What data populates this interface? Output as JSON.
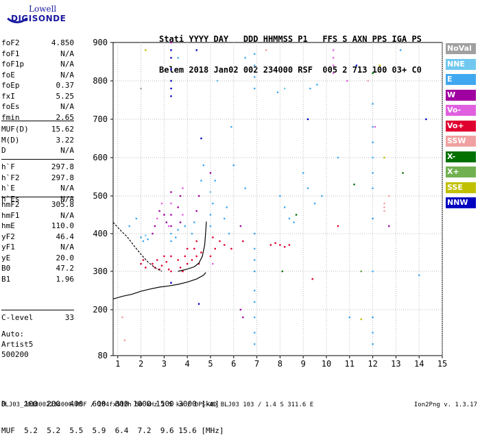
{
  "logo": {
    "line1": "Lowell",
    "line2": "DIGISONDE"
  },
  "header": {
    "line1": "Stati YYYY DAY   DDD HHMMSS P1   FFS S AXN PPS IGA PS",
    "line2": "Belem 2018 Jan02 002 234000 RSF  005 2 713 100 03+ C0"
  },
  "params_a": [
    {
      "k": "foF2",
      "v": "4.850"
    },
    {
      "k": "foF1",
      "v": "N/A"
    },
    {
      "k": "foF1p",
      "v": "N/A"
    },
    {
      "k": "foE",
      "v": "N/A"
    },
    {
      "k": "foEp",
      "v": "0.37"
    },
    {
      "k": "fxI",
      "v": "5.25"
    },
    {
      "k": "foEs",
      "v": "N/A"
    },
    {
      "k": "fmin",
      "v": "2.65"
    }
  ],
  "params_b": [
    {
      "k": "MUF(D)",
      "v": "15.62"
    },
    {
      "k": "M(D)",
      "v": "3.22"
    },
    {
      "k": "D",
      "v": "N/A"
    }
  ],
  "params_c": [
    {
      "k": "h`F",
      "v": "297.8"
    },
    {
      "k": "h`F2",
      "v": "297.8"
    },
    {
      "k": "h`E",
      "v": "N/A"
    },
    {
      "k": "h`Es",
      "v": "N/A"
    }
  ],
  "params_d": [
    {
      "k": "hmF2",
      "v": "305.8"
    },
    {
      "k": "hmF1",
      "v": "N/A"
    },
    {
      "k": "hmE",
      "v": "110.0"
    },
    {
      "k": "yF2",
      "v": "46.4"
    },
    {
      "k": "yF1",
      "v": "N/A"
    },
    {
      "k": "yE",
      "v": "20.0"
    },
    {
      "k": "B0",
      "v": "47.2"
    },
    {
      "k": "B1",
      "v": "1.96"
    }
  ],
  "params_e": [
    {
      "k": "C-level",
      "v": "33"
    }
  ],
  "autoscaling": {
    "line1": "Auto:",
    "line2": "Artist5",
    "line3": "500200"
  },
  "legend": [
    {
      "label": "NoVal",
      "color": "#a0a0a0"
    },
    {
      "label": "NNE",
      "color": "#70c8f0"
    },
    {
      "label": "E",
      "color": "#40a8f0"
    },
    {
      "label": "W",
      "color": "#a000a0"
    },
    {
      "label": "Vo-",
      "color": "#e060e0"
    },
    {
      "label": "Vo+",
      "color": "#e00030"
    },
    {
      "label": "SSW",
      "color": "#f0a0a0"
    },
    {
      "label": "X-",
      "color": "#007000"
    },
    {
      "label": "X+",
      "color": "#70b050"
    },
    {
      "label": "SSE",
      "color": "#c0c000"
    },
    {
      "label": "NNW",
      "color": "#0000c0"
    }
  ],
  "muf_table": {
    "line1": "D    100  200  400  600  800 1000 1500 3000 [km]",
    "line2": "MUF  5.2  5.2  5.5  5.9  6.4  7.2  9.6 15.6 [MHz]"
  },
  "footer": {
    "left": "BLJ03_2018002234000.RSF / 284fx512h 50 kHz 2.5 km / DPS-4D BLJ03 103 / 1.4 S 311.6 E",
    "right": "Ion2Png v. 1.3.17"
  },
  "chart_data": {
    "type": "scatter",
    "xlim": [
      0.8,
      15
    ],
    "ylim": [
      80,
      900
    ],
    "x_ticks": [
      1,
      2,
      3,
      4,
      5,
      6,
      7,
      8,
      9,
      10,
      11,
      12,
      13,
      14,
      15
    ],
    "y_ticks": [
      80,
      200,
      300,
      400,
      500,
      600,
      700,
      800,
      900
    ],
    "y_scale": "nonlinear",
    "grid": "dotted",
    "lines": [
      {
        "name": "profile",
        "color": "#000000",
        "dash": false,
        "points": [
          [
            0.8,
            228
          ],
          [
            1.2,
            235
          ],
          [
            1.6,
            240
          ],
          [
            2.0,
            248
          ],
          [
            2.4,
            254
          ],
          [
            2.8,
            259
          ],
          [
            3.2,
            262
          ],
          [
            3.6,
            266
          ],
          [
            4.0,
            272
          ],
          [
            4.4,
            280
          ],
          [
            4.7,
            290
          ],
          [
            4.8,
            297
          ]
        ]
      },
      {
        "name": "trace",
        "color": "#000000",
        "dash": false,
        "points": [
          [
            3.6,
            300
          ],
          [
            4.0,
            306
          ],
          [
            4.3,
            312
          ],
          [
            4.5,
            322
          ],
          [
            4.65,
            340
          ],
          [
            4.75,
            370
          ],
          [
            4.8,
            410
          ],
          [
            4.82,
            432
          ]
        ]
      },
      {
        "name": "extrapolation",
        "color": "#000000",
        "dash": true,
        "points": [
          [
            0.8,
            430
          ],
          [
            1.1,
            410
          ],
          [
            1.4,
            392
          ],
          [
            1.7,
            368
          ],
          [
            2.0,
            345
          ],
          [
            2.3,
            325
          ],
          [
            2.6,
            310
          ],
          [
            2.9,
            300
          ]
        ]
      }
    ],
    "points": [
      {
        "x": 2.0,
        "y": 390,
        "c": "#40a8f0"
      },
      {
        "x": 2.1,
        "y": 380,
        "c": "#40a8f0"
      },
      {
        "x": 2.2,
        "y": 395,
        "c": "#70c8f0"
      },
      {
        "x": 2.3,
        "y": 385,
        "c": "#40a8f0"
      },
      {
        "x": 2.5,
        "y": 400,
        "c": "#a000a0"
      },
      {
        "x": 2.6,
        "y": 420,
        "c": "#a000a0"
      },
      {
        "x": 2.7,
        "y": 440,
        "c": "#e060e0"
      },
      {
        "x": 2.8,
        "y": 460,
        "c": "#a000a0"
      },
      {
        "x": 2.9,
        "y": 480,
        "c": "#e060e0"
      },
      {
        "x": 3.0,
        "y": 450,
        "c": "#a000a0"
      },
      {
        "x": 3.1,
        "y": 430,
        "c": "#a000a0"
      },
      {
        "x": 3.2,
        "y": 420,
        "c": "#e060e0"
      },
      {
        "x": 2.5,
        "y": 320,
        "c": "#e00030"
      },
      {
        "x": 2.6,
        "y": 310,
        "c": "#e00030"
      },
      {
        "x": 2.7,
        "y": 330,
        "c": "#e00030"
      },
      {
        "x": 2.8,
        "y": 305,
        "c": "#e00030"
      },
      {
        "x": 2.9,
        "y": 315,
        "c": "#e00030"
      },
      {
        "x": 3.0,
        "y": 340,
        "c": "#e00030"
      },
      {
        "x": 3.1,
        "y": 325,
        "c": "#e00030"
      },
      {
        "x": 3.2,
        "y": 305,
        "c": "#e00030"
      },
      {
        "x": 2.1,
        "y": 330,
        "c": "#e00030"
      },
      {
        "x": 2.2,
        "y": 310,
        "c": "#e00030"
      },
      {
        "x": 2.0,
        "y": 320,
        "c": "#e00030"
      },
      {
        "x": 3.3,
        "y": 380,
        "c": "#40a8f0"
      },
      {
        "x": 3.3,
        "y": 400,
        "c": "#40a8f0"
      },
      {
        "x": 3.3,
        "y": 420,
        "c": "#a000a0"
      },
      {
        "x": 3.3,
        "y": 450,
        "c": "#a000a0"
      },
      {
        "x": 3.3,
        "y": 480,
        "c": "#e060e0"
      },
      {
        "x": 3.3,
        "y": 510,
        "c": "#a000a0"
      },
      {
        "x": 3.3,
        "y": 340,
        "c": "#e00030"
      },
      {
        "x": 3.3,
        "y": 300,
        "c": "#e00030"
      },
      {
        "x": 3.3,
        "y": 270,
        "c": "#0000c0"
      },
      {
        "x": 3.3,
        "y": 860,
        "c": "#0000c0"
      },
      {
        "x": 3.3,
        "y": 830,
        "c": "#0000c0"
      },
      {
        "x": 3.3,
        "y": 800,
        "c": "#0000c0"
      },
      {
        "x": 3.3,
        "y": 780,
        "c": "#0000c0"
      },
      {
        "x": 3.3,
        "y": 760,
        "c": "#0000c0"
      },
      {
        "x": 3.3,
        "y": 880,
        "c": "#0000c0"
      },
      {
        "x": 3.3,
        "y": 900,
        "c": "#a000a0"
      },
      {
        "x": 3.5,
        "y": 390,
        "c": "#40a8f0"
      },
      {
        "x": 3.6,
        "y": 410,
        "c": "#40a8f0"
      },
      {
        "x": 3.7,
        "y": 430,
        "c": "#a000a0"
      },
      {
        "x": 3.8,
        "y": 450,
        "c": "#e060e0"
      },
      {
        "x": 3.6,
        "y": 470,
        "c": "#a000a0"
      },
      {
        "x": 3.7,
        "y": 500,
        "c": "#a000a0"
      },
      {
        "x": 3.8,
        "y": 520,
        "c": "#e060e0"
      },
      {
        "x": 3.9,
        "y": 420,
        "c": "#40a8f0"
      },
      {
        "x": 3.6,
        "y": 330,
        "c": "#e00030"
      },
      {
        "x": 3.7,
        "y": 310,
        "c": "#e00030"
      },
      {
        "x": 3.8,
        "y": 300,
        "c": "#e00030"
      },
      {
        "x": 3.9,
        "y": 340,
        "c": "#e00030"
      },
      {
        "x": 4.0,
        "y": 360,
        "c": "#e00030"
      },
      {
        "x": 4.0,
        "y": 320,
        "c": "#e00030"
      },
      {
        "x": 4.2,
        "y": 400,
        "c": "#40a8f0"
      },
      {
        "x": 4.3,
        "y": 430,
        "c": "#40a8f0"
      },
      {
        "x": 4.4,
        "y": 460,
        "c": "#a000a0"
      },
      {
        "x": 4.5,
        "y": 500,
        "c": "#a000a0"
      },
      {
        "x": 4.6,
        "y": 540,
        "c": "#40a8f0"
      },
      {
        "x": 4.7,
        "y": 580,
        "c": "#40a8f0"
      },
      {
        "x": 4.3,
        "y": 360,
        "c": "#e00030"
      },
      {
        "x": 4.4,
        "y": 340,
        "c": "#e00030"
      },
      {
        "x": 4.5,
        "y": 320,
        "c": "#e00030"
      },
      {
        "x": 4.6,
        "y": 350,
        "c": "#e00030"
      },
      {
        "x": 4.2,
        "y": 330,
        "c": "#e00030"
      },
      {
        "x": 4.4,
        "y": 380,
        "c": "#e00030"
      },
      {
        "x": 4.6,
        "y": 650,
        "c": "#0000c0"
      },
      {
        "x": 4.4,
        "y": 880,
        "c": "#0000c0"
      },
      {
        "x": 4.5,
        "y": 215,
        "c": "#0000c0"
      },
      {
        "x": 5.0,
        "y": 420,
        "c": "#40a8f0"
      },
      {
        "x": 5.0,
        "y": 450,
        "c": "#40a8f0"
      },
      {
        "x": 5.1,
        "y": 480,
        "c": "#40a8f0"
      },
      {
        "x": 5.0,
        "y": 510,
        "c": "#70c8f0"
      },
      {
        "x": 5.2,
        "y": 540,
        "c": "#40a8f0"
      },
      {
        "x": 5.0,
        "y": 560,
        "c": "#a000a0"
      },
      {
        "x": 5.1,
        "y": 390,
        "c": "#e00030"
      },
      {
        "x": 5.2,
        "y": 360,
        "c": "#e00030"
      },
      {
        "x": 5.0,
        "y": 340,
        "c": "#e00030"
      },
      {
        "x": 5.1,
        "y": 320,
        "c": "#e060e0"
      },
      {
        "x": 5.4,
        "y": 380,
        "c": "#e00030"
      },
      {
        "x": 5.6,
        "y": 370,
        "c": "#e00030"
      },
      {
        "x": 5.8,
        "y": 400,
        "c": "#40a8f0"
      },
      {
        "x": 5.9,
        "y": 360,
        "c": "#e00030"
      },
      {
        "x": 5.6,
        "y": 440,
        "c": "#40a8f0"
      },
      {
        "x": 5.7,
        "y": 470,
        "c": "#40a8f0"
      },
      {
        "x": 6.3,
        "y": 420,
        "c": "#a000a0"
      },
      {
        "x": 6.4,
        "y": 380,
        "c": "#e00030"
      },
      {
        "x": 6.5,
        "y": 860,
        "c": "#40a8f0"
      },
      {
        "x": 6.3,
        "y": 200,
        "c": "#a000a0"
      },
      {
        "x": 6.4,
        "y": 180,
        "c": "#a000a0"
      },
      {
        "x": 6.5,
        "y": 520,
        "c": "#40a8f0"
      },
      {
        "x": 6.9,
        "y": 300,
        "c": "#40a8f0"
      },
      {
        "x": 6.9,
        "y": 330,
        "c": "#40a8f0"
      },
      {
        "x": 6.9,
        "y": 360,
        "c": "#40a8f0"
      },
      {
        "x": 6.9,
        "y": 400,
        "c": "#40a8f0"
      },
      {
        "x": 6.9,
        "y": 250,
        "c": "#40a8f0"
      },
      {
        "x": 6.9,
        "y": 220,
        "c": "#40a8f0"
      },
      {
        "x": 6.9,
        "y": 180,
        "c": "#40a8f0"
      },
      {
        "x": 6.9,
        "y": 140,
        "c": "#40a8f0"
      },
      {
        "x": 6.9,
        "y": 110,
        "c": "#40a8f0"
      },
      {
        "x": 6.9,
        "y": 870,
        "c": "#40a8f0"
      },
      {
        "x": 6.9,
        "y": 840,
        "c": "#40a8f0"
      },
      {
        "x": 6.9,
        "y": 810,
        "c": "#40a8f0"
      },
      {
        "x": 6.9,
        "y": 780,
        "c": "#40a8f0"
      },
      {
        "x": 7.6,
        "y": 370,
        "c": "#e00030"
      },
      {
        "x": 7.8,
        "y": 375,
        "c": "#e00030"
      },
      {
        "x": 8.0,
        "y": 370,
        "c": "#e00030"
      },
      {
        "x": 8.2,
        "y": 365,
        "c": "#e00030"
      },
      {
        "x": 8.4,
        "y": 370,
        "c": "#e00030"
      },
      {
        "x": 8.0,
        "y": 500,
        "c": "#40a8f0"
      },
      {
        "x": 8.2,
        "y": 470,
        "c": "#40a8f0"
      },
      {
        "x": 8.4,
        "y": 440,
        "c": "#40a8f0"
      },
      {
        "x": 8.6,
        "y": 430,
        "c": "#40a8f0"
      },
      {
        "x": 8.7,
        "y": 450,
        "c": "#007000"
      },
      {
        "x": 8.2,
        "y": 780,
        "c": "#70c8f0"
      },
      {
        "x": 8.1,
        "y": 300,
        "c": "#007000"
      },
      {
        "x": 9.0,
        "y": 560,
        "c": "#40a8f0"
      },
      {
        "x": 9.2,
        "y": 520,
        "c": "#40a8f0"
      },
      {
        "x": 9.3,
        "y": 780,
        "c": "#40a8f0"
      },
      {
        "x": 9.6,
        "y": 790,
        "c": "#40a8f0"
      },
      {
        "x": 9.2,
        "y": 700,
        "c": "#0000c0"
      },
      {
        "x": 9.5,
        "y": 480,
        "c": "#40a8f0"
      },
      {
        "x": 9.8,
        "y": 500,
        "c": "#40a8f0"
      },
      {
        "x": 9.4,
        "y": 280,
        "c": "#e00030"
      },
      {
        "x": 10.3,
        "y": 880,
        "c": "#e060e0"
      },
      {
        "x": 10.3,
        "y": 860,
        "c": "#e060e0"
      },
      {
        "x": 10.3,
        "y": 840,
        "c": "#e060e0"
      },
      {
        "x": 10.3,
        "y": 820,
        "c": "#e060e0"
      },
      {
        "x": 10.5,
        "y": 600,
        "c": "#40a8f0"
      },
      {
        "x": 10.5,
        "y": 420,
        "c": "#e00030"
      },
      {
        "x": 10.9,
        "y": 800,
        "c": "#e060e0"
      },
      {
        "x": 11.0,
        "y": 180,
        "c": "#40a8f0"
      },
      {
        "x": 11.2,
        "y": 530,
        "c": "#007000"
      },
      {
        "x": 11.3,
        "y": 840,
        "c": "#0000c0"
      },
      {
        "x": 11.5,
        "y": 300,
        "c": "#70b050"
      },
      {
        "x": 11.5,
        "y": 175,
        "c": "#c0c000"
      },
      {
        "x": 11.8,
        "y": 800,
        "c": "#f0a0a0"
      },
      {
        "x": 12.0,
        "y": 820,
        "c": "#007000"
      },
      {
        "x": 12.0,
        "y": 740,
        "c": "#40a8f0"
      },
      {
        "x": 12.0,
        "y": 680,
        "c": "#40a8f0"
      },
      {
        "x": 12.0,
        "y": 640,
        "c": "#40a8f0"
      },
      {
        "x": 12.0,
        "y": 600,
        "c": "#40a8f0"
      },
      {
        "x": 12.0,
        "y": 560,
        "c": "#40a8f0"
      },
      {
        "x": 12.0,
        "y": 520,
        "c": "#40a8f0"
      },
      {
        "x": 12.0,
        "y": 440,
        "c": "#40a8f0"
      },
      {
        "x": 12.0,
        "y": 300,
        "c": "#40a8f0"
      },
      {
        "x": 12.0,
        "y": 180,
        "c": "#40a8f0"
      },
      {
        "x": 12.0,
        "y": 140,
        "c": "#40a8f0"
      },
      {
        "x": 12.0,
        "y": 110,
        "c": "#40a8f0"
      },
      {
        "x": 12.1,
        "y": 680,
        "c": "#e060e0"
      },
      {
        "x": 12.3,
        "y": 840,
        "c": "#c0c000"
      },
      {
        "x": 12.5,
        "y": 480,
        "c": "#f0a0a0"
      },
      {
        "x": 12.5,
        "y": 470,
        "c": "#f0a0a0"
      },
      {
        "x": 12.5,
        "y": 460,
        "c": "#f0a0a0"
      },
      {
        "x": 12.5,
        "y": 600,
        "c": "#c0c000"
      },
      {
        "x": 12.7,
        "y": 500,
        "c": "#f0a0a0"
      },
      {
        "x": 12.7,
        "y": 420,
        "c": "#a000a0"
      },
      {
        "x": 13.2,
        "y": 880,
        "c": "#40a8f0"
      },
      {
        "x": 13.3,
        "y": 560,
        "c": "#007000"
      },
      {
        "x": 14.0,
        "y": 290,
        "c": "#40a8f0"
      },
      {
        "x": 14.3,
        "y": 700,
        "c": "#0000c0"
      },
      {
        "x": 1.2,
        "y": 180,
        "c": "#f0a0a0"
      },
      {
        "x": 1.3,
        "y": 120,
        "c": "#f0a0a0"
      },
      {
        "x": 2.2,
        "y": 880,
        "c": "#c0c000"
      },
      {
        "x": 2.0,
        "y": 780,
        "c": "#a0a0a0"
      },
      {
        "x": 1.5,
        "y": 420,
        "c": "#40a8f0"
      },
      {
        "x": 1.8,
        "y": 440,
        "c": "#40a8f0"
      },
      {
        "x": 7.4,
        "y": 880,
        "c": "#f0a0a0"
      },
      {
        "x": 5.3,
        "y": 800,
        "c": "#70c8f0"
      },
      {
        "x": 5.9,
        "y": 680,
        "c": "#40a8f0"
      },
      {
        "x": 6.0,
        "y": 580,
        "c": "#40a8f0"
      },
      {
        "x": 3.6,
        "y": 860,
        "c": "#40a8f0"
      },
      {
        "x": 7.9,
        "y": 770,
        "c": "#40a8f0"
      }
    ]
  }
}
